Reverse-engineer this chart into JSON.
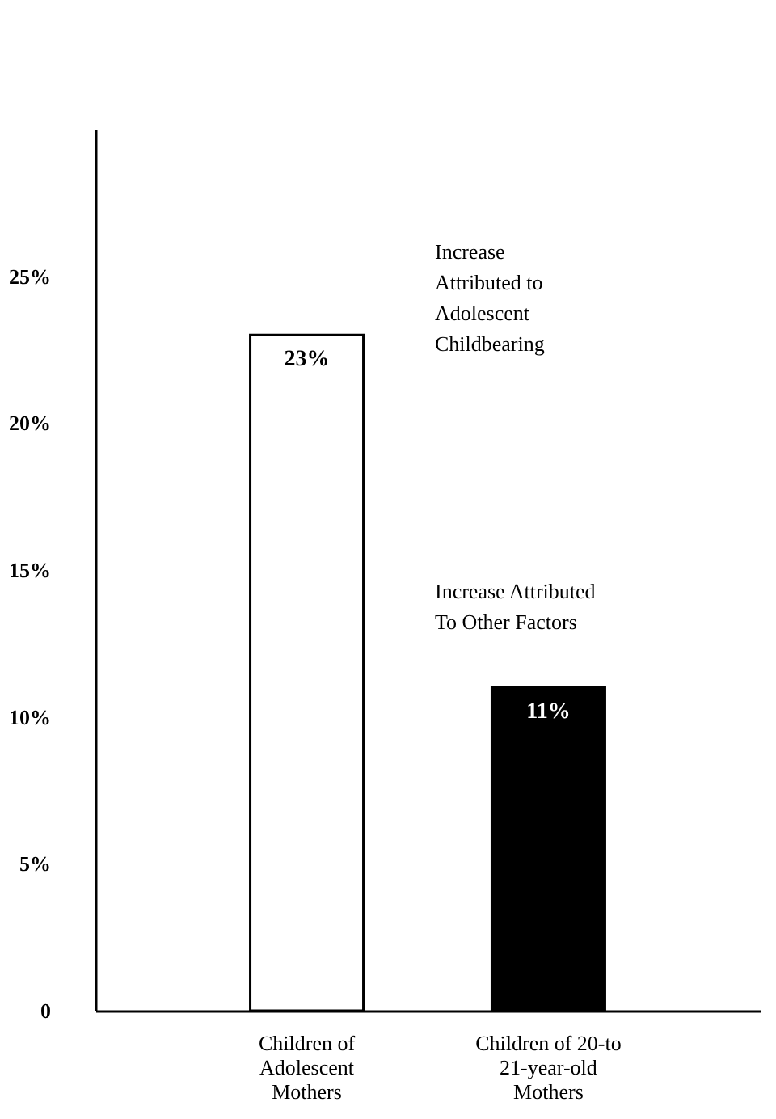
{
  "chart_data": {
    "type": "bar",
    "categories": [
      "Children of Adolescent Mothers",
      "Children of 20-to 21-year-old Mothers"
    ],
    "values": [
      23,
      11
    ],
    "colors": [
      "#ffffff",
      "#000000"
    ],
    "value_labels": [
      "23%",
      "11%"
    ],
    "ylim": [
      0,
      30
    ],
    "yticks": [
      0,
      {
        "value": 5,
        "label": "5%"
      },
      {
        "value": 10,
        "label": "10%"
      },
      {
        "value": 15,
        "label": "15%"
      },
      {
        "value": 20,
        "label": "20%"
      },
      {
        "value": 25,
        "label": "25%"
      }
    ],
    "grid": false,
    "annotations": [
      "Increase Attributed to Adolescent Childbearing",
      "Increase Attributed To Other Factors"
    ]
  }
}
